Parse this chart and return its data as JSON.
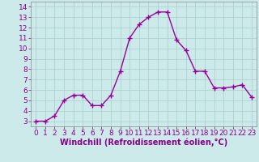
{
  "x": [
    0,
    1,
    2,
    3,
    4,
    5,
    6,
    7,
    8,
    9,
    10,
    11,
    12,
    13,
    14,
    15,
    16,
    17,
    18,
    19,
    20,
    21,
    22,
    23
  ],
  "y": [
    3.0,
    3.0,
    3.5,
    5.0,
    5.5,
    5.5,
    4.5,
    4.5,
    5.5,
    7.8,
    11.0,
    12.3,
    13.0,
    13.5,
    13.5,
    10.8,
    9.8,
    7.8,
    7.8,
    6.2,
    6.2,
    6.3,
    6.5,
    5.3
  ],
  "line_color": "#990099",
  "marker": "+",
  "marker_size": 4,
  "bg_color": "#cceaea",
  "grid_color": "#aacccc",
  "xlabel": "Windchill (Refroidissement éolien,°C)",
  "xlim": [
    -0.5,
    23.5
  ],
  "ylim": [
    2.5,
    14.5
  ],
  "yticks": [
    3,
    4,
    5,
    6,
    7,
    8,
    9,
    10,
    11,
    12,
    13,
    14
  ],
  "xticks": [
    0,
    1,
    2,
    3,
    4,
    5,
    6,
    7,
    8,
    9,
    10,
    11,
    12,
    13,
    14,
    15,
    16,
    17,
    18,
    19,
    20,
    21,
    22,
    23
  ],
  "xlabel_fontsize": 7,
  "tick_fontsize": 6.5,
  "label_color": "#880088",
  "spine_color": "#888888",
  "linewidth": 1.0
}
